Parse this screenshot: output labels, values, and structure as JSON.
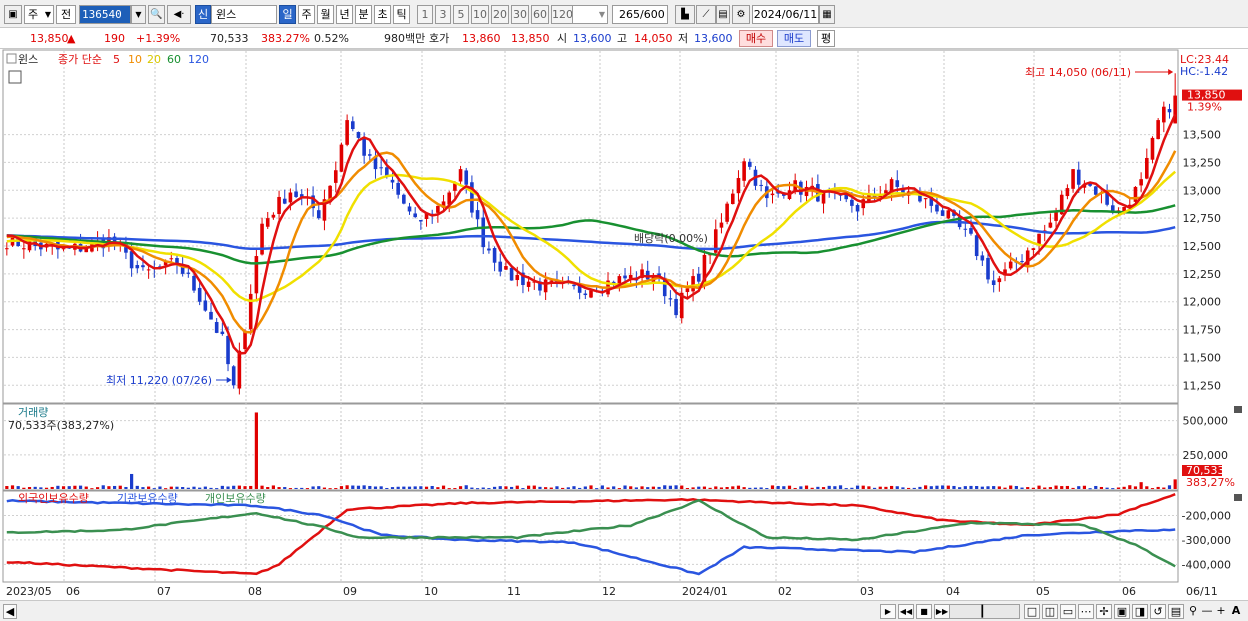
{
  "toolbar": {
    "period_type": "주",
    "prev_label": "전",
    "stock_code": "136540",
    "market_badge": "신",
    "stock_name": "윈스",
    "intervals": [
      "일",
      "주",
      "월",
      "년",
      "분",
      "초",
      "틱"
    ],
    "minute_options": [
      "1",
      "3",
      "5",
      "10",
      "20",
      "30",
      "60",
      "120"
    ],
    "count_display": "265",
    "count_total": "/600",
    "date": "2024/06/11"
  },
  "info": {
    "price": "13,850",
    "change": "190",
    "change_pct": "+1.39%",
    "volume": "70,533",
    "volume_ratio": "383.27%",
    "turnover": "0.52%",
    "amount": "980백만",
    "quote_label": "호가",
    "ask": "13,860",
    "bid": "13,850",
    "open_label": "시",
    "open": "13,600",
    "high_label": "고",
    "high": "14,050",
    "low_label": "저",
    "low": "13,600",
    "buy_label": "매수",
    "sell_label": "매도",
    "eval_label": "평"
  },
  "colors": {
    "up": "#e00000",
    "down": "#1a3ccc",
    "ma5": "#e01010",
    "ma10": "#f08c00",
    "ma20": "#f0e000",
    "ma60": "#189030",
    "ma120": "#2a55e0",
    "foreign": "#e01010",
    "institution": "#2a55e0",
    "individual": "#3a8f50"
  },
  "chart_data": [
    {
      "type": "candlestick",
      "legend": {
        "name": "윈스",
        "ma_label": "종가 단순",
        "ma_periods": [
          "5",
          "10",
          "20",
          "60",
          "120"
        ]
      },
      "y_ticks": [
        "13,500",
        "13,250",
        "13,000",
        "12,750",
        "12,500",
        "12,250",
        "12,000",
        "11,750",
        "11,500",
        "11,250"
      ],
      "ylim": [
        11100,
        14250
      ],
      "x_ticks": [
        "2023/05",
        "06",
        "07",
        "08",
        "09",
        "10",
        "11",
        "12",
        "2024/01",
        "02",
        "03",
        "04",
        "05",
        "06",
        "06/11"
      ],
      "annotations": {
        "high": "최고 14,050 (06/11)",
        "low": "최저 11,220 (07/26)",
        "dividend": "배당락(0.00%)",
        "lc": "LC:23.44",
        "hc": "HC:-1.42",
        "last_price": "13,850",
        "last_pct": "1.39%"
      },
      "close_path": [
        [
          0,
          12550
        ],
        [
          10,
          12450
        ],
        [
          18,
          12550
        ],
        [
          24,
          12250
        ],
        [
          30,
          12350
        ],
        [
          34,
          12050
        ],
        [
          38,
          11650
        ],
        [
          40,
          11220
        ],
        [
          42,
          11800
        ],
        [
          45,
          12700
        ],
        [
          50,
          13000
        ],
        [
          55,
          12800
        ],
        [
          58,
          13200
        ],
        [
          60,
          13650
        ],
        [
          64,
          13250
        ],
        [
          68,
          13050
        ],
        [
          72,
          12700
        ],
        [
          76,
          12850
        ],
        [
          80,
          13150
        ],
        [
          84,
          12550
        ],
        [
          88,
          12250
        ],
        [
          94,
          12150
        ],
        [
          100,
          12100
        ],
        [
          108,
          12200
        ],
        [
          114,
          12250
        ],
        [
          118,
          11950
        ],
        [
          122,
          12250
        ],
        [
          126,
          12700
        ],
        [
          130,
          13300
        ],
        [
          134,
          12900
        ],
        [
          138,
          13050
        ],
        [
          144,
          12950
        ],
        [
          150,
          12850
        ],
        [
          156,
          13050
        ],
        [
          164,
          12850
        ],
        [
          170,
          12550
        ],
        [
          174,
          12150
        ],
        [
          178,
          12350
        ],
        [
          184,
          12700
        ],
        [
          188,
          13150
        ],
        [
          192,
          13000
        ],
        [
          196,
          12800
        ],
        [
          200,
          13050
        ],
        [
          203,
          13600
        ],
        [
          206,
          13850
        ]
      ]
    },
    {
      "type": "bar",
      "title": "거래량",
      "current": "70,533주(383,27%)",
      "y_ticks": [
        "500,000",
        "250,000"
      ],
      "ylim": [
        0,
        600000
      ],
      "spikes": [
        [
          22,
          110000
        ],
        [
          44,
          560000
        ],
        [
          200,
          50000
        ],
        [
          206,
          70533
        ]
      ],
      "badge_value": "70,533",
      "badge_pct": "383,27%"
    },
    {
      "type": "line",
      "series": [
        {
          "name": "외국인보유수량",
          "values": [
            [
              0,
              -390000
            ],
            [
              44,
              -440000
            ],
            [
              48,
              -400000
            ],
            [
              60,
              -175000
            ],
            [
              80,
              -150000
            ],
            [
              120,
              -135000
            ],
            [
              150,
              -160000
            ],
            [
              165,
              -220000
            ],
            [
              180,
              -240000
            ],
            [
              196,
              -195000
            ],
            [
              200,
              -160000
            ],
            [
              206,
              -115000
            ]
          ]
        },
        {
          "name": "기관보유수량",
          "values": [
            [
              0,
              -140000
            ],
            [
              44,
              -160000
            ],
            [
              56,
              -200000
            ],
            [
              66,
              -280000
            ],
            [
              80,
              -300000
            ],
            [
              100,
              -310000
            ],
            [
              122,
              -440000
            ],
            [
              130,
              -330000
            ],
            [
              160,
              -350000
            ],
            [
              180,
              -280000
            ],
            [
              200,
              -260000
            ],
            [
              206,
              -260000
            ]
          ]
        },
        {
          "name": "개인보유수량",
          "values": [
            [
              0,
              -270000
            ],
            [
              20,
              -260000
            ],
            [
              44,
              -190000
            ],
            [
              56,
              -250000
            ],
            [
              62,
              -290000
            ],
            [
              90,
              -290000
            ],
            [
              110,
              -240000
            ],
            [
              122,
              -140000
            ],
            [
              134,
              -290000
            ],
            [
              150,
              -300000
            ],
            [
              170,
              -230000
            ],
            [
              190,
              -240000
            ],
            [
              200,
              -330000
            ],
            [
              206,
              -410000
            ]
          ]
        }
      ],
      "y_ticks": [
        "-200,000",
        "-300,000",
        "-400,000"
      ],
      "ylim": [
        -460000,
        -100000
      ]
    }
  ],
  "bottom": {
    "nav_buttons": [
      "▶",
      "◀◀",
      "■",
      "▶▶"
    ],
    "zoom_minus": "—",
    "zoom_plus": "+",
    "font_label": "A"
  }
}
